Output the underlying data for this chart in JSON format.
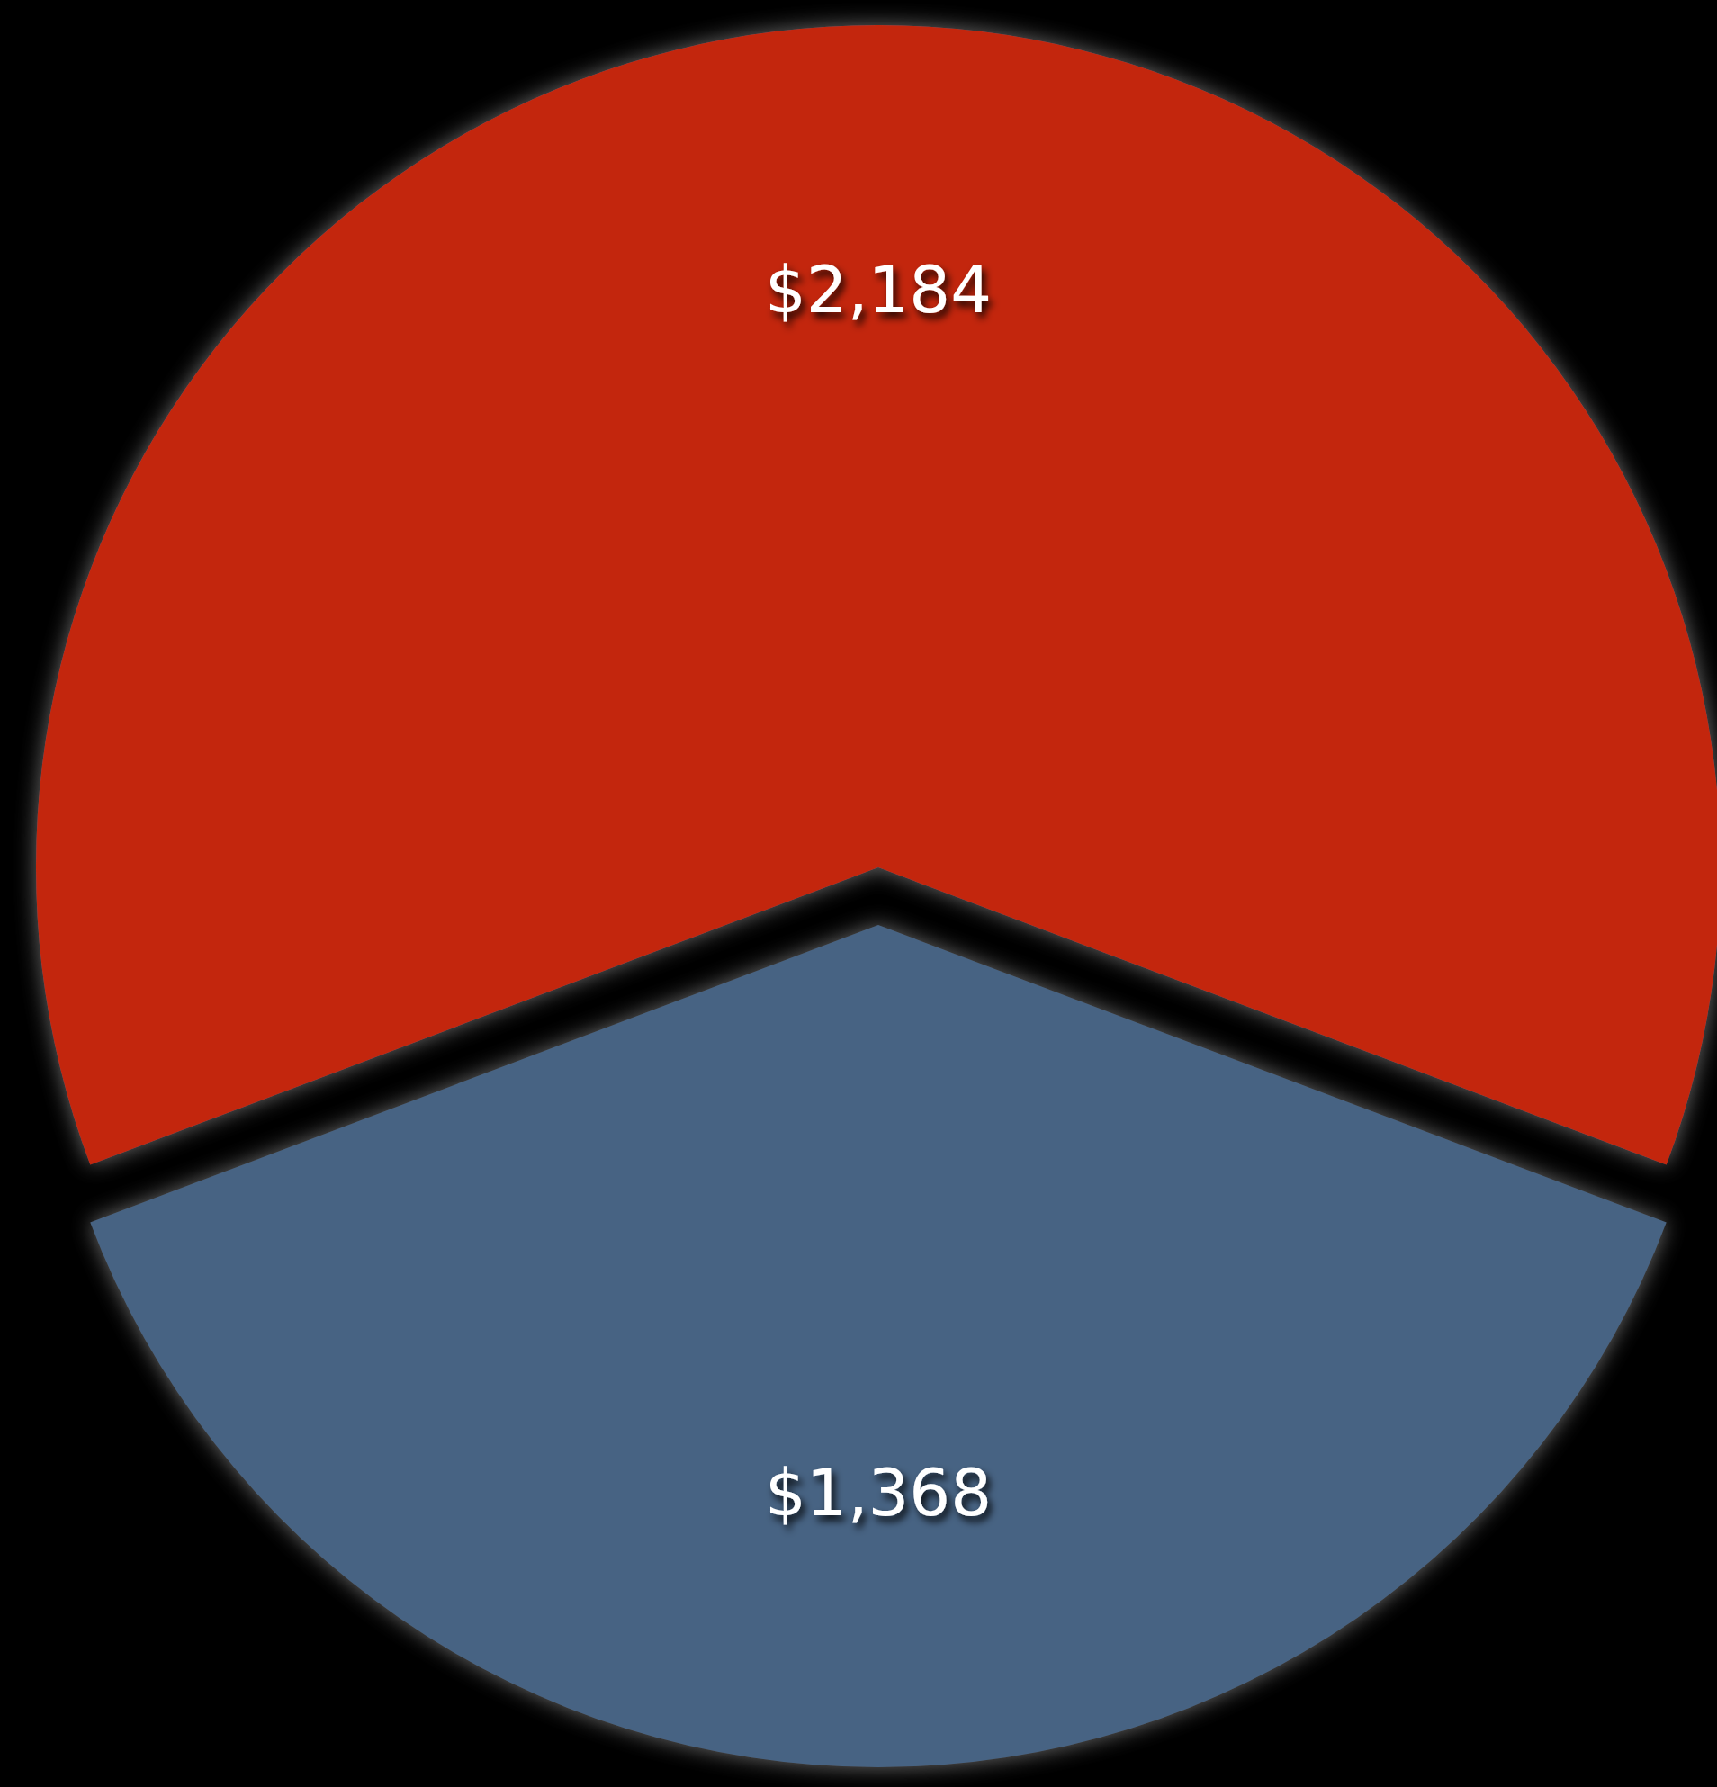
{
  "chart_data": {
    "type": "pie",
    "categories": [
      null,
      null
    ],
    "values": [
      2184,
      1368
    ],
    "colors": [
      "#c3270b",
      "#476483"
    ],
    "value_labels": [
      "$2,184",
      "$1,368"
    ]
  }
}
